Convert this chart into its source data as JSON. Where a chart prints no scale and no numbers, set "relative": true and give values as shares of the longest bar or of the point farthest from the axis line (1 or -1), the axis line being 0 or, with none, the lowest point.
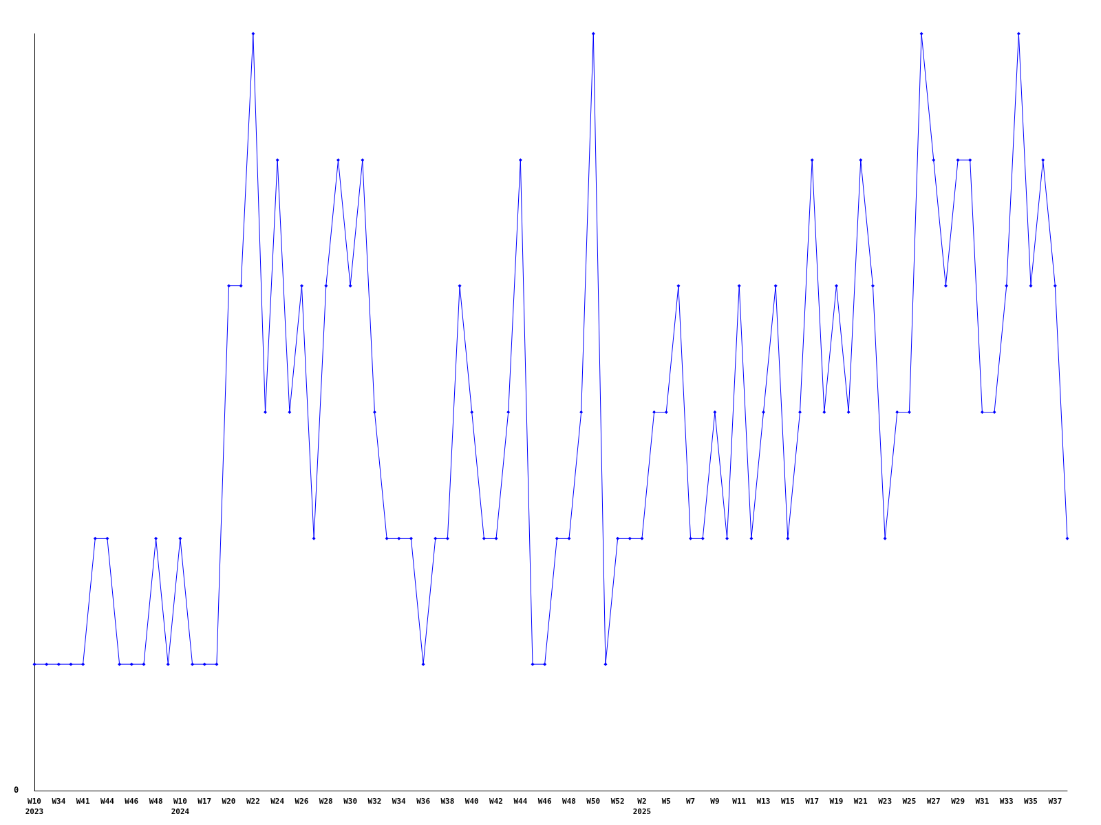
{
  "chart_data": {
    "type": "line",
    "relative": true,
    "categories": [
      "W10\n2023",
      null,
      "W34",
      null,
      "W41",
      null,
      "W44",
      null,
      "W46",
      null,
      "W48",
      null,
      "W10\n2024",
      null,
      "W17",
      null,
      "W20",
      null,
      "W22",
      null,
      "W24",
      null,
      "W26",
      null,
      "W28",
      null,
      "W30",
      null,
      "W32",
      null,
      "W34",
      null,
      "W36",
      null,
      "W38",
      null,
      "W40",
      null,
      "W42",
      null,
      "W44",
      null,
      "W46",
      null,
      "W48",
      null,
      "W50",
      null,
      "W52",
      null,
      "W2\n2025",
      null,
      "W5",
      null,
      "W7",
      null,
      "W9",
      null,
      "W11",
      null,
      "W13",
      null,
      "W15",
      null,
      "W17",
      null,
      "W19",
      null,
      "W21",
      null,
      "W23",
      null,
      "W25",
      null,
      "W27",
      null,
      "W29",
      null,
      "W31",
      null,
      "W33",
      null,
      "W35",
      null,
      "W37",
      null
    ],
    "series": [
      {
        "color": "#0000ff",
        "values": [
          0.167,
          0.167,
          0.167,
          0.167,
          0.167,
          0.333,
          0.333,
          0.167,
          0.167,
          0.167,
          0.333,
          0.167,
          0.333,
          0.167,
          0.167,
          0.167,
          0.667,
          0.667,
          1,
          0.5,
          0.833,
          0.5,
          0.667,
          0.333,
          0.667,
          0.833,
          0.667,
          0.833,
          0.5,
          0.333,
          0.333,
          0.333,
          0.167,
          0.333,
          0.333,
          0.667,
          0.5,
          0.333,
          0.333,
          0.5,
          0.833,
          0.167,
          0.167,
          0.333,
          0.333,
          0.5,
          1,
          0.167,
          0.333,
          0.333,
          0.333,
          0.5,
          0.5,
          0.667,
          0.333,
          0.333,
          0.5,
          0.333,
          0.667,
          0.333,
          0.5,
          0.667,
          0.333,
          0.5,
          0.833,
          0.5,
          0.667,
          0.5,
          0.833,
          0.667,
          0.333,
          0.5,
          0.5,
          1,
          0.833,
          0.667,
          0.833,
          0.833,
          0.5,
          0.5,
          0.667,
          1,
          0.667,
          0.833,
          0.667,
          0.333
        ]
      }
    ],
    "annotations": [
      "0"
    ],
    "marker": "diamond",
    "line_style": "solid",
    "grid": false
  }
}
